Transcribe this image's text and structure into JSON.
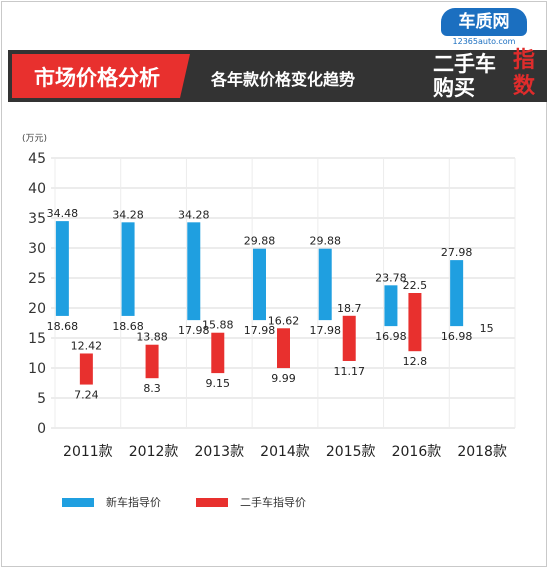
{
  "header": {
    "title": "市场价格分析",
    "subtitle": "各年款价格变化趋势"
  },
  "logo": {
    "brand": "车质网",
    "url": "12365auto.com",
    "line1": "二手车",
    "line2": "购买",
    "side1": "指",
    "side2": "数"
  },
  "colors": {
    "new": "#1f9fe0",
    "used": "#e8302e",
    "header_red": "#e8302e",
    "header_dark": "#333333"
  },
  "chart_data": {
    "type": "floating-bar",
    "unit_label": "(万元)",
    "ylim": [
      0,
      45
    ],
    "yticks": [
      0,
      5,
      10,
      15,
      20,
      25,
      30,
      35,
      40,
      45
    ],
    "grid": true,
    "legend_position": "bottom-left",
    "categories": [
      "2011款",
      "2012款",
      "2013款",
      "2014款",
      "2015款",
      "2016款",
      "2018款"
    ],
    "series": [
      {
        "name": "新车指导价",
        "ranges": [
          [
            18.68,
            34.48
          ],
          [
            18.68,
            34.28
          ],
          [
            17.98,
            34.28
          ],
          [
            17.98,
            29.88
          ],
          [
            17.98,
            29.88
          ],
          [
            16.98,
            23.78
          ],
          [
            16.98,
            27.98
          ]
        ],
        "low_labels": [
          "18.68",
          "18.68",
          "17.98",
          "17.98",
          "17.98",
          "16.98",
          "16.98"
        ],
        "high_labels": [
          "34.48",
          "34.28",
          "34.28",
          "29.88",
          "29.88",
          "23.78",
          "27.98"
        ]
      },
      {
        "name": "二手车指导价",
        "ranges": [
          [
            7.24,
            12.42
          ],
          [
            8.3,
            13.88
          ],
          [
            9.15,
            15.88
          ],
          [
            9.99,
            16.62
          ],
          [
            11.17,
            18.7
          ],
          [
            12.8,
            22.5
          ],
          [
            null,
            15
          ]
        ],
        "low_labels": [
          "7.24",
          "8.3",
          "9.15",
          "9.99",
          "11.17",
          "12.8",
          ""
        ],
        "high_labels": [
          "12.42",
          "13.88",
          "15.88",
          "16.62",
          "18.7",
          "22.5",
          "15"
        ]
      }
    ]
  }
}
